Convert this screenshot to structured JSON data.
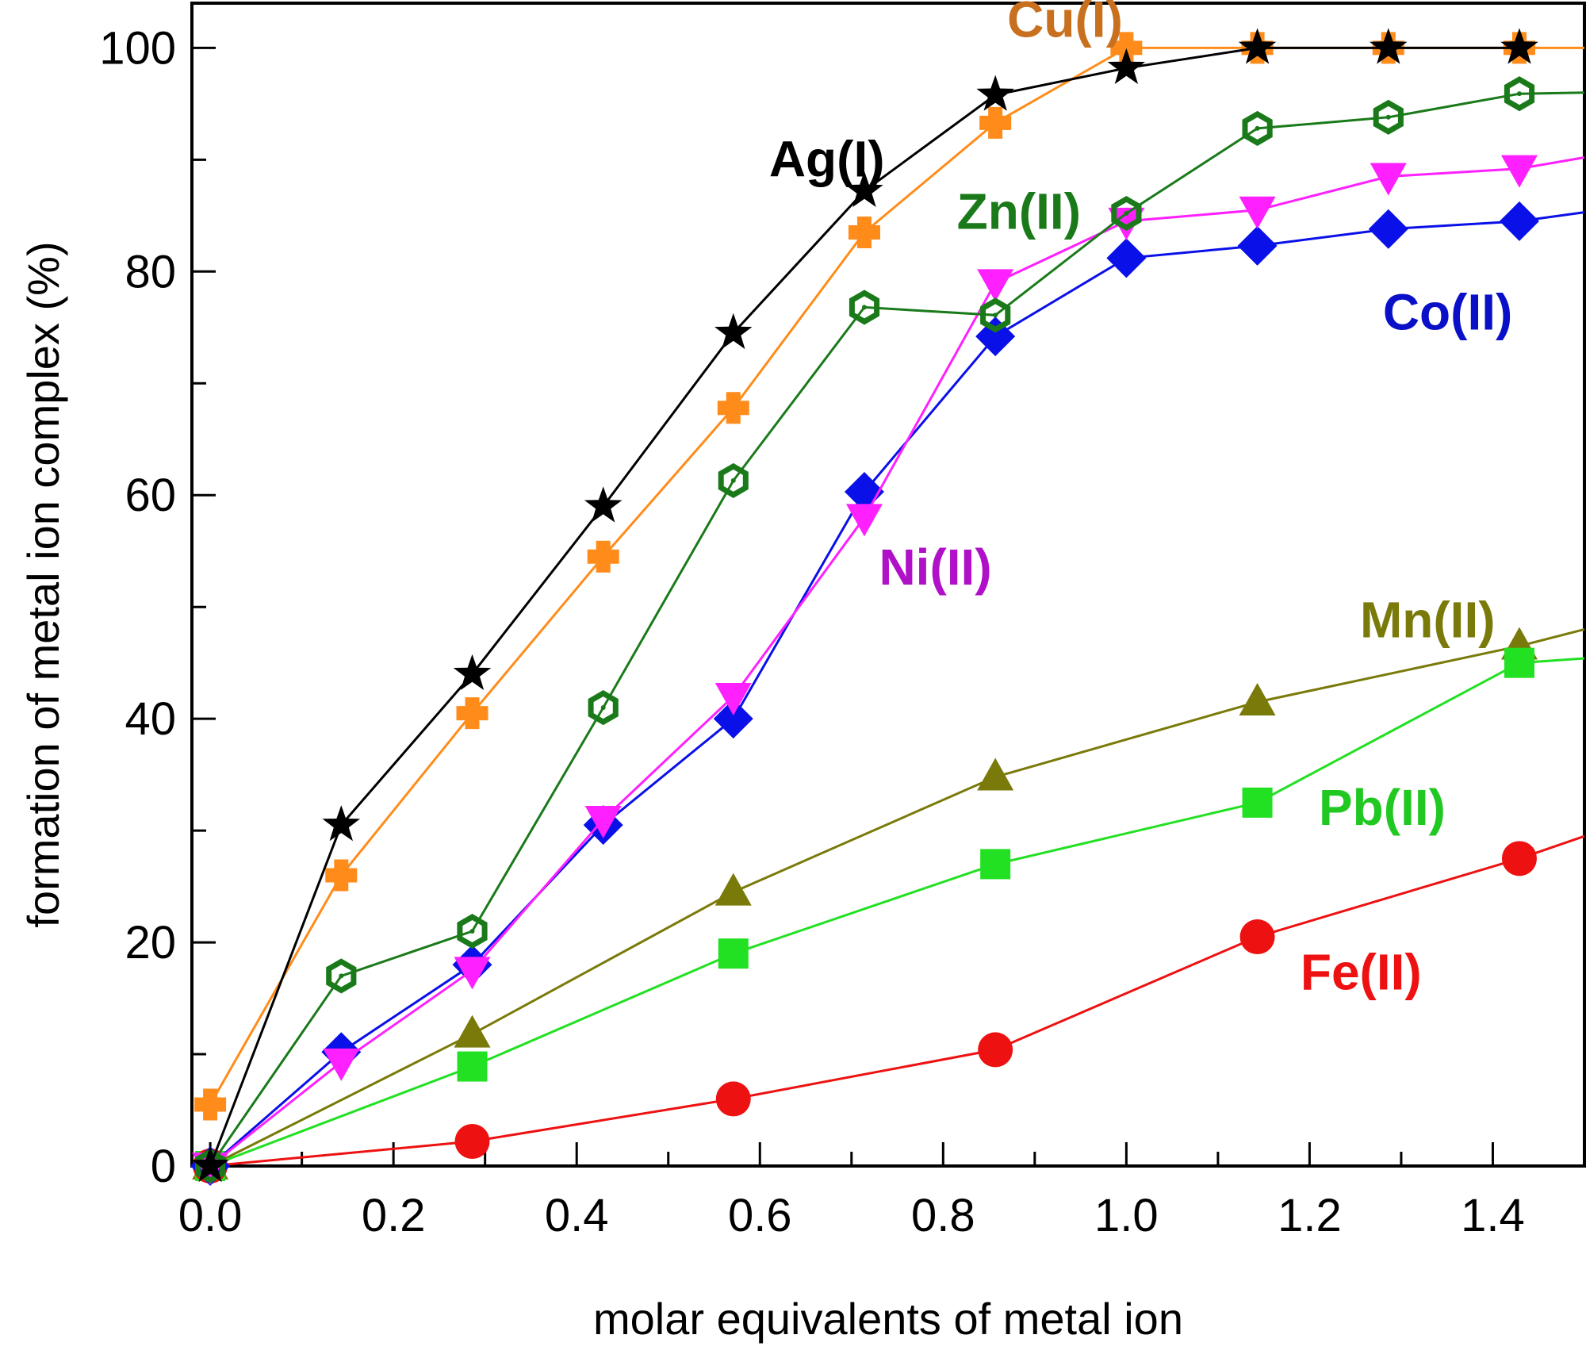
{
  "chart_data": {
    "type": "line",
    "title": "",
    "xlabel": "molar equivalents of metal ion",
    "ylabel": "formation of metal ion complex (%)",
    "xlim": [
      -0.02,
      1.5
    ],
    "ylim": [
      0,
      104
    ],
    "xticks": [
      0.0,
      0.2,
      0.4,
      0.6,
      0.8,
      1.0,
      1.2,
      1.4
    ],
    "xtick_labels": [
      "0.0",
      "0.2",
      "0.4",
      "0.6",
      "0.8",
      "1.0",
      "1.2",
      "1.4"
    ],
    "yticks": [
      0,
      20,
      40,
      60,
      80,
      100
    ],
    "ytick_labels": [
      "0",
      "20",
      "40",
      "60",
      "80",
      "100"
    ],
    "grid": false,
    "legend": "inline labels",
    "series": [
      {
        "name": "Cu(I)",
        "color": "#ff8c1a",
        "label_color": "#c8701e",
        "marker": "plus",
        "x": [
          0,
          0.143,
          0.286,
          0.429,
          0.571,
          0.714,
          0.857,
          1.0,
          1.143,
          1.286,
          1.429,
          1.5
        ],
        "y": [
          5.5,
          26,
          40.5,
          54.5,
          67.8,
          83.5,
          93.3,
          100,
          100,
          100,
          100,
          100
        ],
        "label_at": [
          0.87,
          101
        ]
      },
      {
        "name": "Ag(I)",
        "color": "#000000",
        "label_color": "#000000",
        "marker": "star",
        "x": [
          0,
          0.143,
          0.286,
          0.429,
          0.571,
          0.714,
          0.857,
          1.0,
          1.143,
          1.286,
          1.429
        ],
        "y": [
          0,
          30.5,
          44,
          59,
          74.5,
          87.2,
          95.8,
          98.2,
          100,
          100,
          100
        ],
        "label_at": [
          0.61,
          88.5
        ]
      },
      {
        "name": "Zn(II)",
        "color": "#1a7a1a",
        "label_color": "#1a7a1a",
        "marker": "hexagon",
        "x": [
          0,
          0.143,
          0.286,
          0.429,
          0.571,
          0.714,
          0.857,
          1.0,
          1.143,
          1.286,
          1.429,
          1.5
        ],
        "y": [
          0,
          17,
          21,
          41,
          61.3,
          76.8,
          76.1,
          85.2,
          92.8,
          93.8,
          95.9,
          96
        ],
        "label_at": [
          0.815,
          83.8
        ]
      },
      {
        "name": "Ni(II)",
        "color": "#ff20ff",
        "label_color": "#b010c8",
        "marker": "triangle-down",
        "x": [
          0,
          0.143,
          0.286,
          0.429,
          0.571,
          0.714,
          0.857,
          1.0,
          1.143,
          1.286,
          1.429,
          1.5
        ],
        "y": [
          0,
          9.3,
          17.5,
          31,
          42,
          58,
          79,
          84.5,
          85.5,
          88.5,
          89.2,
          90.2
        ],
        "label_at": [
          0.73,
          52
        ]
      },
      {
        "name": "Co(II)",
        "color": "#0a10e8",
        "label_color": "#0a10c8",
        "marker": "diamond",
        "x": [
          0,
          0.143,
          0.286,
          0.429,
          0.571,
          0.714,
          0.857,
          1.0,
          1.143,
          1.286,
          1.429,
          1.5
        ],
        "y": [
          0,
          10.2,
          18,
          30.5,
          40,
          60.3,
          74.2,
          81.2,
          82.3,
          83.8,
          84.5,
          85.3
        ],
        "label_at": [
          1.28,
          74.8
        ]
      },
      {
        "name": "Mn(II)",
        "color": "#7a7a0a",
        "label_color": "#7a7a0a",
        "marker": "triangle-up",
        "x": [
          0,
          0.286,
          0.571,
          0.857,
          1.143,
          1.429,
          1.5
        ],
        "y": [
          0,
          11.8,
          24.5,
          34.8,
          41.5,
          46.5,
          48
        ],
        "label_at": [
          1.255,
          47.3
        ]
      },
      {
        "name": "Pb(II)",
        "color": "#22e022",
        "label_color": "#22c822",
        "marker": "square",
        "x": [
          0,
          0.286,
          0.571,
          0.857,
          1.143,
          1.429,
          1.5
        ],
        "y": [
          0,
          8.9,
          19,
          27,
          32.5,
          45,
          45.4
        ],
        "label_at": [
          1.21,
          30.5
        ]
      },
      {
        "name": "Fe(II)",
        "color": "#ee1111",
        "label_color": "#ee1111",
        "marker": "circle",
        "x": [
          0,
          0.286,
          0.571,
          0.857,
          1.143,
          1.429,
          1.5
        ],
        "y": [
          0,
          2.2,
          6,
          10.4,
          20.5,
          27.5,
          29.5
        ],
        "label_at": [
          1.19,
          15.8
        ]
      }
    ]
  }
}
